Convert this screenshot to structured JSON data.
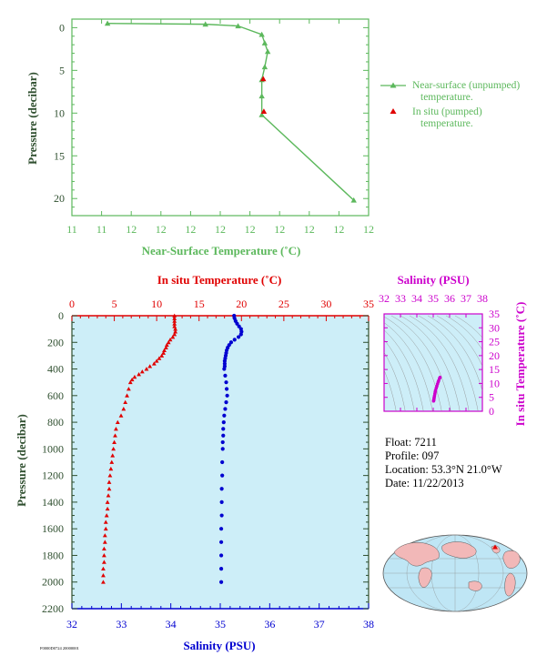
{
  "colors": {
    "near_surface": "#5cb85c",
    "in_situ": "#e00000",
    "salinity": "#0000d0",
    "salinity_axis": "#cc00cc",
    "axis_dark": "#2f4f2f",
    "panel_bg": "#cdeef8"
  },
  "info": {
    "float": "Float:  7211",
    "profile": "Profile:  097",
    "location": "Location:  53.3°N  21.0°W",
    "date": "Date:  11/22/2013"
  },
  "footer_text": "F0000D0724 20000001",
  "chart_data": [
    {
      "id": "near-surface",
      "type": "line",
      "xlabel": "Near-Surface Temperature (˚C)",
      "ylabel": "Pressure (decibar)",
      "x_tick_labels": [
        "11",
        "11",
        "12",
        "12",
        "12",
        "12",
        "12",
        "12",
        "12",
        "12",
        "12"
      ],
      "xlim": [
        11.0,
        12.0
      ],
      "ylim": [
        0,
        22
      ],
      "y_ticks": [
        0,
        5,
        10,
        15,
        20
      ],
      "y_inverted": true,
      "grid": false,
      "legend_position": "right",
      "series": [
        {
          "name": "Near-surface (unpumped) temperature.",
          "marker": "triangle",
          "x": [
            11.12,
            11.45,
            11.56,
            11.64,
            11.65,
            11.66,
            11.65,
            11.64,
            11.64,
            11.64,
            11.95
          ],
          "y": [
            -0.5,
            -0.4,
            -0.2,
            0.8,
            1.8,
            2.8,
            4.6,
            6.1,
            8.0,
            10.2,
            20.2
          ]
        },
        {
          "name": "In situ (pumped) temperature.",
          "marker": "triangle",
          "x": [
            11.645,
            11.647
          ],
          "y": [
            6.0,
            9.8
          ]
        }
      ]
    },
    {
      "id": "profile",
      "type": "line",
      "title_top": "In situ Temperature (˚C)",
      "xlabel": "Salinity (PSU)",
      "ylabel": "Pressure (decibar)",
      "temp_ticks": [
        0,
        5,
        10,
        15,
        20,
        25,
        30,
        35
      ],
      "temp_lim": [
        0,
        35
      ],
      "sal_ticks": [
        32,
        33,
        34,
        35,
        36,
        37,
        38
      ],
      "sal_lim": [
        32,
        38
      ],
      "ylim": [
        0,
        2200
      ],
      "y_ticks": [
        0,
        200,
        400,
        600,
        800,
        1000,
        1200,
        1400,
        1600,
        1800,
        2000,
        2200
      ],
      "y_inverted": true,
      "series": [
        {
          "name": "In situ Temperature",
          "marker": "triangle",
          "pressure": [
            0,
            20,
            40,
            60,
            80,
            100,
            120,
            140,
            160,
            180,
            200,
            220,
            240,
            260,
            280,
            300,
            320,
            340,
            360,
            380,
            400,
            420,
            440,
            460,
            480,
            500,
            550,
            600,
            650,
            700,
            750,
            800,
            850,
            900,
            950,
            1000,
            1050,
            1100,
            1150,
            1200,
            1250,
            1300,
            1350,
            1400,
            1450,
            1500,
            1550,
            1600,
            1650,
            1700,
            1750,
            1800,
            1850,
            1900,
            1950,
            2000
          ],
          "temperature": [
            12.1,
            12.1,
            12.1,
            12.1,
            12.1,
            12.2,
            12.2,
            12.1,
            11.9,
            11.6,
            11.4,
            11.2,
            11.1,
            10.9,
            10.8,
            10.6,
            10.3,
            10.0,
            9.7,
            9.2,
            8.8,
            8.3,
            7.9,
            7.4,
            7.1,
            6.9,
            6.7,
            6.5,
            6.3,
            6.1,
            5.8,
            5.4,
            5.2,
            5.1,
            5.0,
            4.9,
            4.8,
            4.7,
            4.6,
            4.5,
            4.4,
            4.4,
            4.3,
            4.2,
            4.2,
            4.1,
            4.0,
            4.0,
            3.9,
            3.9,
            3.8,
            3.8,
            3.8,
            3.7,
            3.7,
            3.7
          ]
        },
        {
          "name": "Salinity",
          "marker": "circle",
          "pressure": [
            0,
            20,
            40,
            60,
            80,
            100,
            120,
            140,
            160,
            180,
            200,
            220,
            240,
            260,
            280,
            300,
            320,
            340,
            360,
            380,
            400,
            450,
            500,
            550,
            600,
            650,
            700,
            750,
            800,
            850,
            900,
            950,
            1000,
            1100,
            1200,
            1300,
            1400,
            1500,
            1600,
            1700,
            1800,
            1900,
            2000
          ],
          "salinity": [
            35.28,
            35.29,
            35.31,
            35.34,
            35.38,
            35.42,
            35.43,
            35.42,
            35.37,
            35.29,
            35.22,
            35.18,
            35.15,
            35.13,
            35.12,
            35.11,
            35.1,
            35.09,
            35.09,
            35.09,
            35.08,
            35.1,
            35.12,
            35.13,
            35.14,
            35.12,
            35.1,
            35.08,
            35.07,
            35.06,
            35.06,
            35.05,
            35.05,
            35.04,
            35.04,
            35.03,
            35.03,
            35.03,
            35.02,
            35.02,
            35.02,
            35.02,
            35.02
          ]
        }
      ]
    },
    {
      "id": "ts-diagram",
      "type": "scatter",
      "xlabel": "Salinity (PSU)",
      "ylabel": "In situ Temperature (˚C)",
      "x_ticks": [
        32,
        33,
        34,
        35,
        36,
        37,
        38
      ],
      "xlim": [
        32,
        38
      ],
      "y_ticks": [
        0,
        5,
        10,
        15,
        20,
        25,
        30,
        35
      ],
      "ylim": [
        0,
        35
      ],
      "points": {
        "salinity": [
          35.42,
          35.38,
          35.33,
          35.3,
          35.26,
          35.22,
          35.18,
          35.14,
          35.12,
          35.1,
          35.08,
          35.06,
          35.05,
          35.04,
          35.03,
          35.02
        ],
        "temperature": [
          12.2,
          11.8,
          11.0,
          10.5,
          9.8,
          9.0,
          8.3,
          7.5,
          6.9,
          6.3,
          5.6,
          5.0,
          4.6,
          4.2,
          3.9,
          3.7
        ]
      }
    }
  ]
}
